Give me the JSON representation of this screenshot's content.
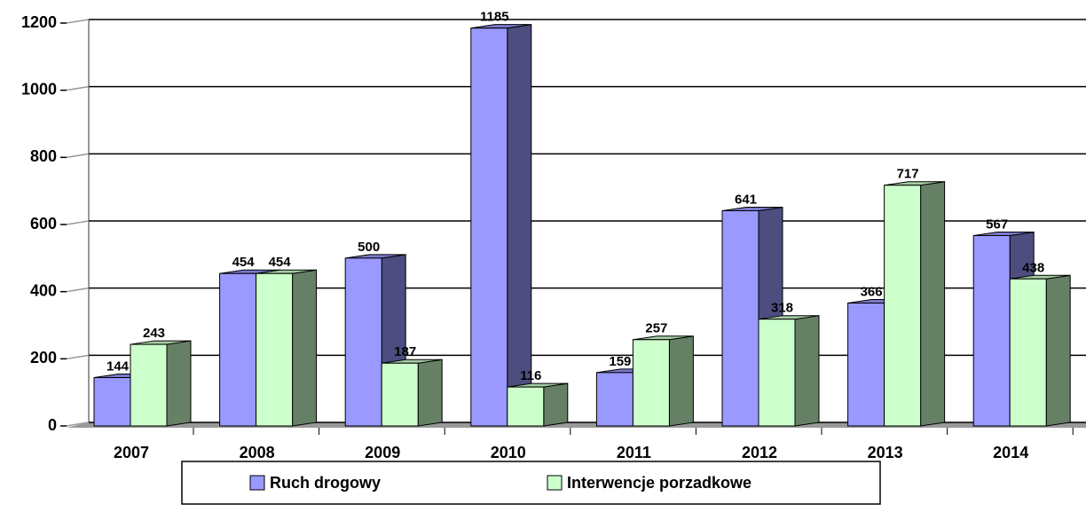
{
  "chart_data": {
    "type": "bar3d",
    "categories": [
      "2007",
      "2008",
      "2009",
      "2010",
      "2011",
      "2012",
      "2013",
      "2014"
    ],
    "series": [
      {
        "name": "Ruch drogowy",
        "color": "#9999ff",
        "values": [
          144,
          454,
          500,
          1185,
          159,
          641,
          366,
          567
        ]
      },
      {
        "name": "Interwencje porzadkowe",
        "color": "#ccffcc",
        "values": [
          243,
          454,
          187,
          116,
          257,
          318,
          717,
          438
        ]
      }
    ],
    "ylim": [
      0,
      1200
    ],
    "yticks": [
      0,
      200,
      400,
      600,
      800,
      1000,
      1200
    ],
    "grid": true,
    "legend": "bottom"
  }
}
